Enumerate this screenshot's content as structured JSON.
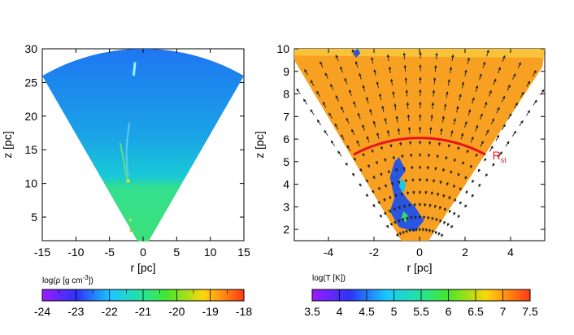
{
  "chart_data": [
    {
      "type": "heatmap",
      "panel": "left",
      "xlabel": "r [pc]",
      "ylabel": "z [pc]",
      "xlim": [
        -15,
        15
      ],
      "ylim": [
        1.5,
        30
      ],
      "xticks": [
        "-15",
        "-10",
        "-5",
        "0",
        "5",
        "10",
        "15"
      ],
      "yticks": [
        "5",
        "10",
        "15",
        "20",
        "25",
        "30"
      ],
      "colorbar": {
        "label": "log(ρ [g cm⁻³])",
        "range": [
          -24,
          -18
        ],
        "ticks": [
          "-24",
          "-23",
          "-22",
          "-21",
          "-20",
          "-19",
          "-18"
        ]
      },
      "wedge": {
        "r_range": [
          1.5,
          30
        ],
        "half_angle_deg": 30
      },
      "grid": false
    },
    {
      "type": "heatmap",
      "panel": "right",
      "xlabel": "r [pc]",
      "ylabel": "z [pc]",
      "xlim": [
        -5.5,
        5.5
      ],
      "ylim": [
        1.5,
        10
      ],
      "xticks": [
        "-4",
        "-2",
        "0",
        "2",
        "4"
      ],
      "yticks": [
        "2",
        "3",
        "4",
        "5",
        "6",
        "7",
        "8",
        "9",
        "10"
      ],
      "colorbar": {
        "label": "log(T [K])",
        "range": [
          3.5,
          7.5
        ],
        "ticks": [
          "3.5",
          "4",
          "4.5",
          "5",
          "5.5",
          "6",
          "6.5",
          "7",
          "7.5"
        ]
      },
      "annotation": {
        "text": "R",
        "subscript": "st",
        "value_pc": 6.05,
        "color": "#e8141c"
      },
      "vector_field": "velocity arrows",
      "grid": false
    }
  ]
}
